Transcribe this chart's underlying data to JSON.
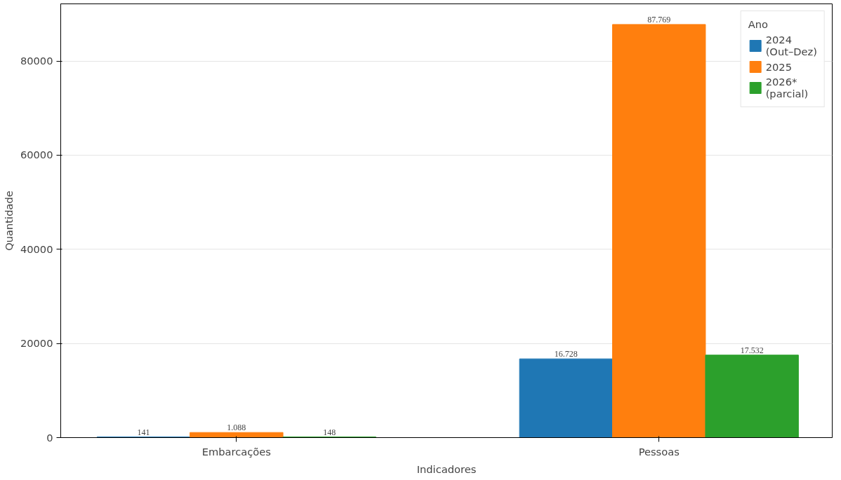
{
  "chart_data": {
    "type": "bar",
    "xlabel": "Indicadores",
    "ylabel": "Quantidade",
    "legend_title": "Ano",
    "categories": [
      "Embarcações",
      "Pessoas"
    ],
    "series": [
      {
        "name": "2024\n(Out–Dez)",
        "color": "#1f77b4",
        "values": [
          141,
          16728
        ],
        "value_labels": [
          "141",
          "16.728"
        ]
      },
      {
        "name": "2025",
        "color": "#ff7f0e",
        "values": [
          1088,
          87769
        ],
        "value_labels": [
          "1.088",
          "87.769"
        ]
      },
      {
        "name": "2026*\n(parcial)",
        "color": "#2ca02c",
        "values": [
          148,
          17532
        ],
        "value_labels": [
          "148",
          "17.532"
        ]
      }
    ],
    "ylim": [
      0,
      92150
    ],
    "yticks": [
      0,
      20000,
      40000,
      60000,
      80000
    ],
    "grid": "y",
    "legend": "top right"
  }
}
